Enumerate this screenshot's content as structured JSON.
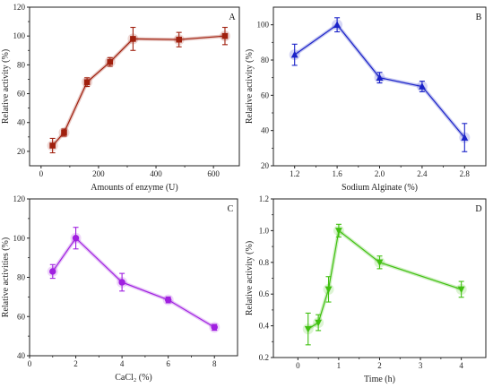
{
  "chart_data": [
    {
      "panel": "A",
      "type": "line",
      "color": "#a0200e",
      "marker": "square",
      "x": [
        40,
        80,
        160,
        240,
        320,
        480,
        640
      ],
      "y": [
        24,
        33,
        68,
        82,
        98,
        97.5,
        100
      ],
      "err": [
        5,
        2.5,
        3,
        3,
        8,
        5,
        6
      ],
      "xlabel": "Amounts of enzyme (U)",
      "ylabel": "Relative activity (%)",
      "xlim": [
        -40,
        690
      ],
      "ylim": [
        10,
        120
      ],
      "xticks": [
        0,
        200,
        400,
        600
      ],
      "yticks": [
        20,
        40,
        60,
        80,
        100,
        120
      ]
    },
    {
      "panel": "B",
      "type": "line",
      "color": "#1a22c8",
      "marker": "triangle-up",
      "x": [
        1.2,
        1.6,
        2.0,
        2.4,
        2.8
      ],
      "y": [
        83,
        100,
        70,
        65,
        36
      ],
      "err": [
        6,
        4,
        3,
        3,
        8
      ],
      "xlabel": "Sodium Alginate (%)",
      "ylabel": "Relative activity (%)",
      "xlim": [
        1.0,
        3.0
      ],
      "ylim": [
        20,
        110
      ],
      "xticks": [
        1.2,
        1.6,
        2.0,
        2.4,
        2.8
      ],
      "yticks": [
        20,
        40,
        60,
        80,
        100
      ]
    },
    {
      "panel": "C",
      "type": "line",
      "color": "#a020e0",
      "marker": "circle",
      "x": [
        1,
        2,
        4,
        6,
        8
      ],
      "y": [
        83,
        100,
        77.5,
        68.5,
        54.5
      ],
      "err": [
        3.5,
        5.5,
        4.5,
        1.5,
        1.5
      ],
      "xlabel": "CaCl₂ (%)",
      "ylabel": "Relative activities (%)",
      "xlim": [
        0,
        9
      ],
      "ylim": [
        40,
        120
      ],
      "xticks": [
        0,
        2,
        4,
        6,
        8
      ],
      "yticks": [
        40,
        60,
        80,
        100,
        120
      ]
    },
    {
      "panel": "D",
      "type": "line",
      "color": "#40c010",
      "marker": "triangle-down",
      "x": [
        0.25,
        0.5,
        0.75,
        1,
        2,
        4
      ],
      "y": [
        0.38,
        0.42,
        0.63,
        1.0,
        0.8,
        0.63
      ],
      "err": [
        0.1,
        0.05,
        0.08,
        0.04,
        0.04,
        0.05
      ],
      "xlabel": "Time (h)",
      "ylabel": "Relative activity (%)",
      "xlim": [
        -0.6,
        4.6
      ],
      "ylim": [
        0.2,
        1.2
      ],
      "xticks": [
        0,
        1,
        2,
        3,
        4
      ],
      "yticks": [
        0.2,
        0.4,
        0.6,
        0.8,
        1.0,
        1.2
      ],
      "ytick_labels": [
        "0.2",
        "0.4",
        "0.6",
        "0.8",
        "1.0",
        "1.2"
      ]
    }
  ]
}
